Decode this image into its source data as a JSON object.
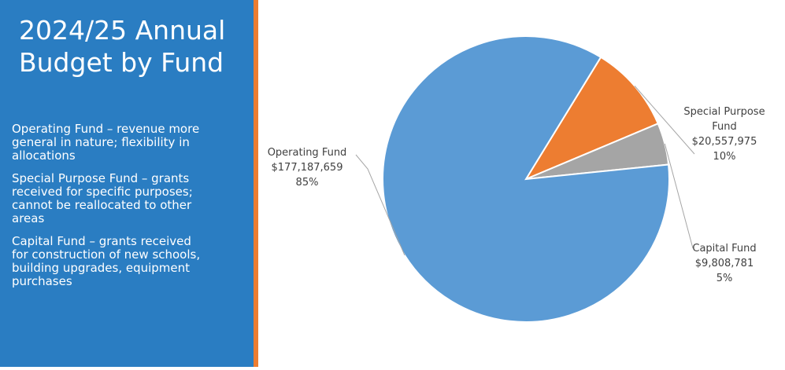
{
  "slide": {
    "title_line1": "2024/25 Annual",
    "title_line2": "Budget by Fund",
    "descriptions": [
      {
        "lines": [
          "Operating Fund – revenue more",
          "general in nature; flexibility in",
          "allocations"
        ]
      },
      {
        "lines": [
          "Special Purpose Fund – grants",
          "received for specific purposes;",
          "cannot be reallocated to other",
          "areas"
        ]
      },
      {
        "lines": [
          "Capital Fund – grants received",
          "for construction of new schools,",
          "building upgrades, equipment",
          "purchases"
        ]
      }
    ]
  },
  "colors": {
    "panel": "#2a7dc2",
    "accent": "#ed7d31"
  },
  "chart_data": {
    "type": "pie",
    "slices": [
      {
        "label_lines": [
          "Operating Fund"
        ],
        "amount": 177187659,
        "value_label": "$177,187,659",
        "percent_label": "85%",
        "color": "#5b9bd5"
      },
      {
        "label_lines": [
          "Special Purpose",
          "Fund"
        ],
        "amount": 20557975,
        "value_label": "$20,557,975",
        "percent_label": "10%",
        "color": "#ed7d31"
      },
      {
        "label_lines": [
          "Capital Fund"
        ],
        "amount": 9808781,
        "value_label": "$9,808,781",
        "percent_label": "5%",
        "color": "#a5a5a5"
      }
    ]
  }
}
